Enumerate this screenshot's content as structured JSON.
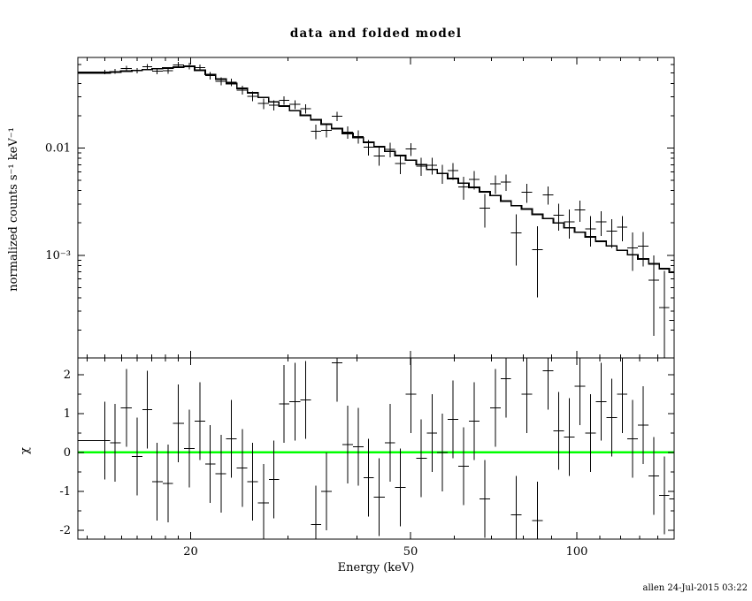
{
  "footer": "allen 24-Jul-2015 03:22",
  "chart_data": {
    "type": "line",
    "title": "data and folded model",
    "xlabel": "Energy (keV)",
    "xscale": "log",
    "xlim": [
      12.5,
      150
    ],
    "xticks": [
      {
        "v": 20,
        "label": "20"
      },
      {
        "v": 50,
        "label": "50"
      },
      {
        "v": 100,
        "label": "100"
      }
    ],
    "xticks_minor": [
      13,
      14,
      15,
      16,
      17,
      18,
      19,
      30,
      40,
      60,
      70,
      80,
      90,
      110,
      120,
      130,
      140,
      150
    ],
    "grid": false,
    "legend": false,
    "panels": [
      {
        "name": "spectrum",
        "ylabel": "normalized counts s⁻¹ keV⁻¹",
        "yscale": "log",
        "ylim": [
          0.00011,
          0.07
        ],
        "yticks": [
          {
            "v": 0.01,
            "label": "0.01"
          },
          {
            "v": 0.001,
            "label": "10⁻³"
          }
        ]
      },
      {
        "name": "residuals",
        "ylabel": "χ",
        "yscale": "linear",
        "ylim": [
          -2.23,
          2.43
        ],
        "yticks": [
          {
            "v": 2,
            "label": "2"
          },
          {
            "v": 1,
            "label": "1"
          },
          {
            "v": 0,
            "label": "0"
          },
          {
            "v": -1,
            "label": "-1"
          },
          {
            "v": -2,
            "label": "-2"
          }
        ],
        "yticks_minor": [
          -1.5,
          -0.5,
          0.5,
          1.5
        ],
        "zero_line_color": "#00ff00"
      }
    ],
    "series": {
      "energy_kev": [
        14.0,
        14.6,
        15.3,
        16.0,
        16.7,
        17.4,
        18.2,
        19.0,
        19.9,
        20.8,
        21.7,
        22.7,
        23.7,
        24.8,
        25.9,
        27.1,
        28.3,
        29.5,
        30.9,
        32.3,
        33.7,
        35.2,
        36.8,
        38.5,
        40.2,
        42.0,
        43.9,
        45.9,
        47.9,
        50.1,
        52.3,
        54.7,
        57.1,
        59.7,
        62.4,
        65.2,
        68.1,
        71.2,
        74.4,
        77.7,
        81.2,
        84.9,
        88.7,
        92.7,
        96.9,
        101.3,
        105.8,
        110.6,
        115.6,
        120.8,
        126.2,
        131.9,
        137.9,
        144.1,
        150.0
      ],
      "counts": [
        0.0511,
        0.0518,
        0.0554,
        0.0527,
        0.0576,
        0.0523,
        0.0529,
        0.0597,
        0.0582,
        0.0563,
        0.0474,
        0.0419,
        0.0411,
        0.0348,
        0.0305,
        0.026,
        0.0251,
        0.0279,
        0.0255,
        0.0233,
        0.0143,
        0.0146,
        0.0198,
        0.0141,
        0.0128,
        0.0102,
        0.00844,
        0.00968,
        0.00719,
        0.00977,
        0.0068,
        0.00691,
        0.0058,
        0.00614,
        0.00433,
        0.0051,
        0.00276,
        0.00465,
        0.00482,
        0.00161,
        0.00387,
        0.00113,
        0.00366,
        0.00236,
        0.00205,
        0.00265,
        0.00176,
        0.00204,
        0.00167,
        0.00183,
        0.00117,
        0.00122,
        0.000585,
        0.000325,
        0.000246
      ],
      "model": [
        0.0503,
        0.0511,
        0.0521,
        0.053,
        0.054,
        0.0549,
        0.0558,
        0.0568,
        0.0578,
        0.0532,
        0.0485,
        0.0439,
        0.0399,
        0.0361,
        0.0328,
        0.0297,
        0.027,
        0.0247,
        0.0223,
        0.0202,
        0.0184,
        0.0167,
        0.0152,
        0.0137,
        0.0125,
        0.0113,
        0.0103,
        0.0093,
        0.0085,
        0.0077,
        0.007,
        0.0063,
        0.0058,
        0.0052,
        0.0047,
        0.0043,
        0.0039,
        0.0036,
        0.0032,
        0.0029,
        0.0027,
        0.0024,
        0.0022,
        0.002,
        0.0018,
        0.00164,
        0.00148,
        0.00135,
        0.00122,
        0.00111,
        0.00101,
        0.00092,
        0.00083,
        0.00075,
        0.00069
      ],
      "rel_error": [
        0.05,
        0.052,
        0.055,
        0.057,
        0.06,
        0.062,
        0.065,
        0.068,
        0.071,
        0.074,
        0.078,
        0.081,
        0.085,
        0.089,
        0.093,
        0.097,
        0.101,
        0.105,
        0.11,
        0.115,
        0.12,
        0.126,
        0.131,
        0.138,
        0.144,
        0.15,
        0.157,
        0.164,
        0.171,
        0.179,
        0.187,
        0.195,
        0.204,
        0.213,
        0.223,
        0.233,
        0.243,
        0.254,
        0.266,
        0.278,
        0.29,
        0.303,
        0.317,
        0.331,
        0.346,
        0.362,
        0.378,
        0.395,
        0.413,
        0.431,
        0.451,
        0.471,
        0.492,
        0.515,
        0.536
      ],
      "chi": [
        0.3,
        0.25,
        1.15,
        -0.1,
        1.1,
        -0.75,
        -0.8,
        0.75,
        0.1,
        0.8,
        -0.3,
        -0.55,
        0.35,
        -0.4,
        -0.75,
        -1.3,
        -0.7,
        1.25,
        1.3,
        1.35,
        -1.85,
        -1.0,
        2.3,
        0.2,
        0.15,
        -0.65,
        -1.15,
        0.25,
        -0.9,
        1.5,
        -0.15,
        0.5,
        0.0,
        0.85,
        -0.35,
        0.8,
        -1.2,
        1.15,
        1.9,
        -1.6,
        1.5,
        -1.75,
        2.1,
        0.55,
        0.4,
        1.7,
        0.5,
        1.3,
        0.9,
        1.5,
        0.35,
        0.7,
        -0.6,
        -1.1,
        -1.2
      ],
      "chi_error": 1
    }
  }
}
